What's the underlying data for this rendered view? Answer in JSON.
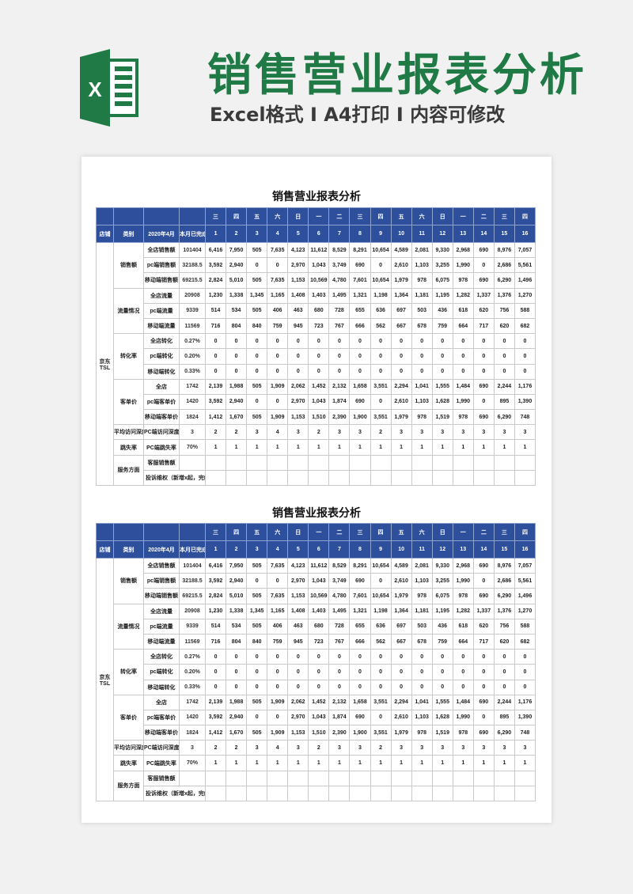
{
  "banner": {
    "title": "销售营业报表分析",
    "subtitle": "Excel格式 I A4打印 I 内容可修改",
    "logo_letter": "X",
    "accent_color": "#1f7a45"
  },
  "sheet": {
    "title": "销售营业报表分析",
    "header_color": "#2e4f9b",
    "weekdays": [
      "三",
      "四",
      "五",
      "六",
      "日",
      "一",
      "二",
      "三",
      "四",
      "五",
      "六",
      "日",
      "一",
      "二",
      "三",
      "四"
    ],
    "days": [
      "1",
      "2",
      "3",
      "4",
      "5",
      "6",
      "7",
      "8",
      "9",
      "10",
      "11",
      "12",
      "13",
      "14",
      "15",
      "16"
    ],
    "col_store": "店铺",
    "col_category": "类别",
    "col_month": "2020年4月",
    "col_total": "本月已完成",
    "store": "京东\nTSL",
    "groups": [
      {
        "category": "销售额",
        "rows": [
          {
            "label": "全店销售额",
            "total": "101404",
            "values": [
              "6,416",
              "7,950",
              "505",
              "7,635",
              "4,123",
              "11,612",
              "8,529",
              "8,291",
              "10,654",
              "4,589",
              "2,081",
              "9,330",
              "2,968",
              "690",
              "8,976",
              "7,057"
            ]
          },
          {
            "label": "pc端销售额",
            "total": "32188.5",
            "values": [
              "3,592",
              "2,940",
              "0",
              "0",
              "2,970",
              "1,043",
              "3,749",
              "690",
              "0",
              "2,610",
              "1,103",
              "3,255",
              "1,990",
              "0",
              "2,686",
              "5,561"
            ]
          },
          {
            "label": "移动端销售额",
            "total": "69215.5",
            "values": [
              "2,824",
              "5,010",
              "505",
              "7,635",
              "1,153",
              "10,569",
              "4,780",
              "7,601",
              "10,654",
              "1,979",
              "978",
              "6,075",
              "978",
              "690",
              "6,290",
              "1,496"
            ]
          }
        ]
      },
      {
        "category": "流量情况",
        "rows": [
          {
            "label": "全店流量",
            "total": "20908",
            "values": [
              "1,230",
              "1,338",
              "1,345",
              "1,165",
              "1,408",
              "1,403",
              "1,495",
              "1,321",
              "1,198",
              "1,364",
              "1,181",
              "1,195",
              "1,282",
              "1,337",
              "1,376",
              "1,270"
            ]
          },
          {
            "label": "pc端流量",
            "total": "9339",
            "values": [
              "514",
              "534",
              "505",
              "406",
              "463",
              "680",
              "728",
              "655",
              "636",
              "697",
              "503",
              "436",
              "618",
              "620",
              "756",
              "588"
            ]
          },
          {
            "label": "移动端流量",
            "total": "11569",
            "values": [
              "716",
              "804",
              "840",
              "759",
              "945",
              "723",
              "767",
              "666",
              "562",
              "667",
              "678",
              "759",
              "664",
              "717",
              "620",
              "682"
            ]
          }
        ]
      },
      {
        "category": "转化率",
        "rows": [
          {
            "label": "全店转化",
            "total": "0.27%",
            "values": [
              "0",
              "0",
              "0",
              "0",
              "0",
              "0",
              "0",
              "0",
              "0",
              "0",
              "0",
              "0",
              "0",
              "0",
              "0",
              "0"
            ]
          },
          {
            "label": "pc端转化",
            "total": "0.20%",
            "values": [
              "0",
              "0",
              "0",
              "0",
              "0",
              "0",
              "0",
              "0",
              "0",
              "0",
              "0",
              "0",
              "0",
              "0",
              "0",
              "0"
            ]
          },
          {
            "label": "移动端转化",
            "total": "0.33%",
            "values": [
              "0",
              "0",
              "0",
              "0",
              "0",
              "0",
              "0",
              "0",
              "0",
              "0",
              "0",
              "0",
              "0",
              "0",
              "0",
              "0"
            ]
          }
        ]
      },
      {
        "category": "客单价",
        "rows": [
          {
            "label": "全店",
            "total": "1742",
            "values": [
              "2,139",
              "1,988",
              "505",
              "1,909",
              "2,062",
              "1,452",
              "2,132",
              "1,658",
              "3,551",
              "2,294",
              "1,041",
              "1,555",
              "1,484",
              "690",
              "2,244",
              "1,176"
            ]
          },
          {
            "label": "pc端客单价",
            "total": "1420",
            "values": [
              "3,592",
              "2,940",
              "0",
              "0",
              "2,970",
              "1,043",
              "1,874",
              "690",
              "0",
              "2,610",
              "1,103",
              "1,628",
              "1,990",
              "0",
              "895",
              "1,390"
            ]
          },
          {
            "label": "移动端客单价",
            "total": "1824",
            "values": [
              "1,412",
              "1,670",
              "505",
              "1,909",
              "1,153",
              "1,510",
              "2,390",
              "1,900",
              "3,551",
              "1,979",
              "978",
              "1,519",
              "978",
              "690",
              "6,290",
              "748"
            ]
          }
        ]
      },
      {
        "category": "平均访问深度",
        "rows": [
          {
            "label": "PC端访问深度",
            "total": "3",
            "values": [
              "2",
              "2",
              "3",
              "4",
              "3",
              "2",
              "3",
              "3",
              "2",
              "3",
              "3",
              "3",
              "3",
              "3",
              "3",
              "3"
            ]
          }
        ]
      },
      {
        "category": "跳失率",
        "rows": [
          {
            "label": "PC端跳失率",
            "total": "70%",
            "values": [
              "1",
              "1",
              "1",
              "1",
              "1",
              "1",
              "1",
              "1",
              "1",
              "1",
              "1",
              "1",
              "1",
              "1",
              "1",
              "1"
            ]
          }
        ]
      }
    ],
    "service": {
      "category": "服务方面",
      "row1_label": "客服销售额",
      "row2_label": "投诉维权（新增x起，完结x件）"
    }
  }
}
